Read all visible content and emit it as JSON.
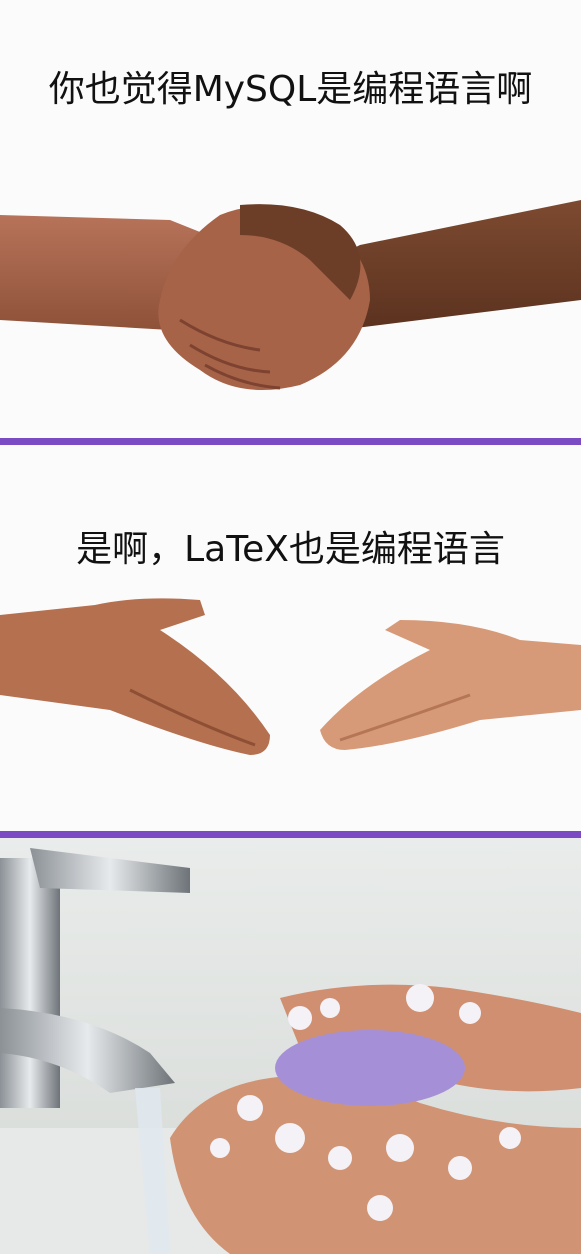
{
  "panels": [
    {
      "caption": "你也觉得MySQL是编程语言啊",
      "scene": "handshake"
    },
    {
      "caption": "是啊，LaTeX也是编程语言",
      "scene": "hands-reaching"
    },
    {
      "caption": "",
      "scene": "hand-washing"
    }
  ],
  "colors": {
    "divider": "#7b4bc4",
    "skin_dark": "#7a4a30",
    "skin_light": "#d79a78",
    "soap": "#a590d8"
  }
}
